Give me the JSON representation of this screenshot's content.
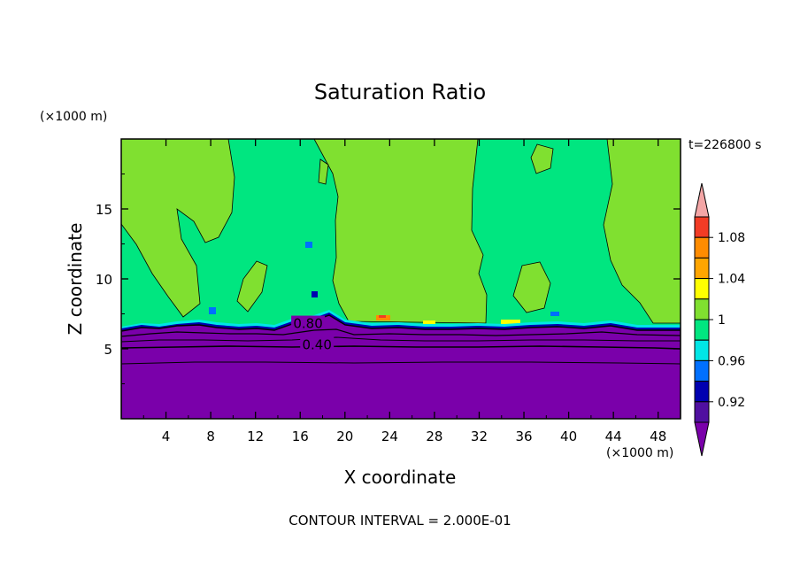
{
  "chart_data": {
    "type": "heatmap",
    "title": "Saturation Ratio",
    "xlabel": "X coordinate",
    "ylabel": "Z coordinate",
    "x_unit": "(×1000 m)",
    "y_unit": "(×1000 m)",
    "time_label": "t=226800 s",
    "footer": "CONTOUR INTERVAL = 2.000E-01",
    "xlim": [
      0,
      50
    ],
    "ylim": [
      0,
      20
    ],
    "x_ticks": [
      4,
      8,
      12,
      16,
      20,
      24,
      28,
      32,
      36,
      40,
      44,
      48
    ],
    "y_ticks": [
      5,
      10,
      15
    ],
    "contour_labels": [
      {
        "text": "0.80",
        "x": 16.7,
        "z": 6.8
      },
      {
        "text": "0.40",
        "x": 17.5,
        "z": 5.3
      }
    ],
    "colorbar": {
      "labels": [
        "1.08",
        "1.04",
        "1",
        "0.96",
        "0.92"
      ],
      "colors": [
        "#f4a6a6",
        "#f23c25",
        "#ff8c00",
        "#ffa500",
        "#ffff00",
        "#80e030",
        "#00e680",
        "#00e6e6",
        "#0070ff",
        "#0000b0",
        "#5010a0",
        "#7a00aa"
      ]
    }
  }
}
